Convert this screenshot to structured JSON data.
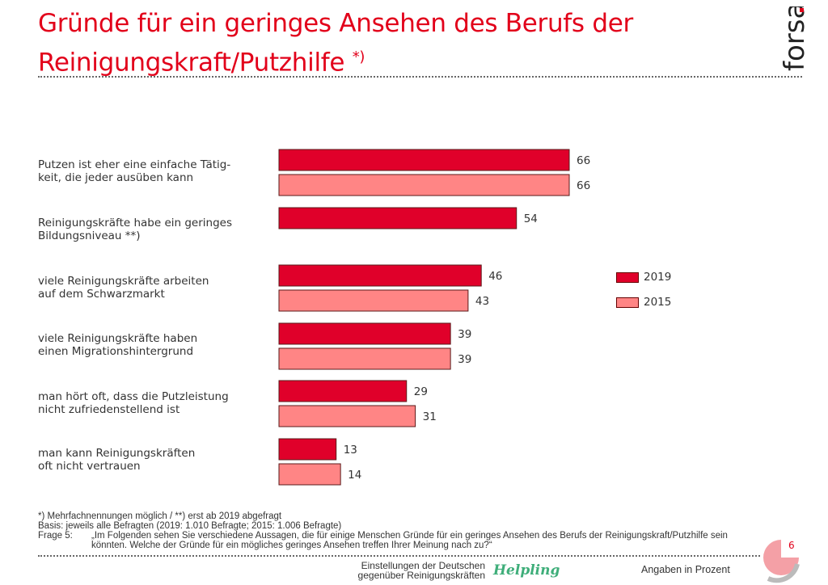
{
  "title": "Gründe für ein geringes Ansehen des Berufs der Reinigungskraft/Putzhilfe",
  "title_note": "*)",
  "logo": "forsa.",
  "colors": {
    "2019": "#e0002a",
    "2015": "#ff8585",
    "accent": "#e2001a"
  },
  "chart_data": {
    "type": "bar",
    "orientation": "horizontal",
    "categories": [
      "Putzen ist eher eine einfache Tätig-\nkeit, die jeder ausüben kann",
      "Reinigungskräfte habe ein geringes\nBildungsniveau **)",
      "viele Reinigungskräfte arbeiten\nauf dem Schwarzmarkt",
      "viele Reinigungskräfte haben\neinen Migrationshintergrund",
      "man hört oft, dass die Putzleistung\nnicht zufriedenstellend ist",
      "man kann Reinigungskräften\noft nicht vertrauen"
    ],
    "series": [
      {
        "name": "2019",
        "values": [
          66,
          54,
          46,
          39,
          29,
          13
        ]
      },
      {
        "name": "2015",
        "values": [
          66,
          null,
          43,
          39,
          31,
          14
        ]
      }
    ],
    "xlim": [
      0,
      100
    ],
    "grid": false,
    "legend": "right",
    "unit": "Angaben in Prozent"
  },
  "footer": {
    "note1": "*) Mehrfachnennungen möglich / **) erst ab 2019 abgefragt",
    "basis": "Basis: jeweils alle Befragten (2019: 1.010 Befragte; 2015: 1.006 Befragte)",
    "frage_label": "Frage 5:",
    "frage_text": "„Im Folgenden sehen Sie verschiedene Aussagen, die für einige Menschen Gründe für ein geringes Ansehen des Berufs der Reinigungskraft/Putzhilfe sein könnten. Welche der Gründe für ein mögliches geringes Ansehen treffen Ihrer Meinung nach zu?“",
    "study": "Einstellungen der Deutschen\ngegenüber Reinigungskräften",
    "brand": "Helpling",
    "unit": "Angaben in Prozent",
    "page": "6"
  }
}
